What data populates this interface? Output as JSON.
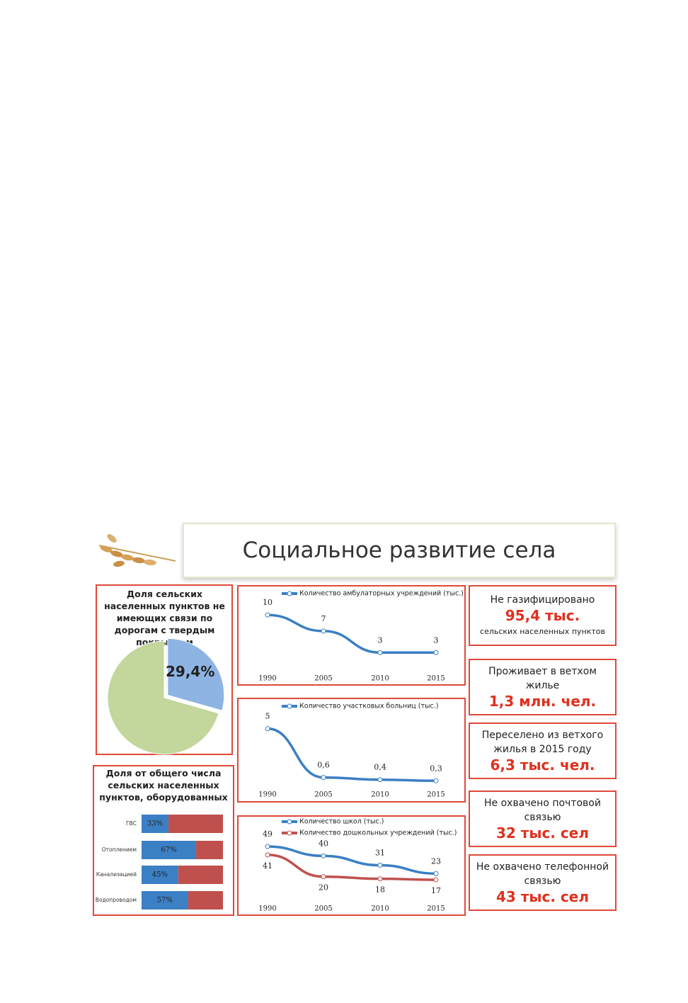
{
  "title": "Социальное развитие села",
  "chart_data": [
    {
      "type": "pie",
      "title": "Доля сельских населенных пунктов не имеющих связи по дорогам с твердым покрытием",
      "values": [
        29.4,
        70.6
      ],
      "value_labels": [
        "29,4%",
        null
      ],
      "colors": [
        "#8eb4e3",
        "#c3d69b"
      ]
    },
    {
      "type": "stacked-barh",
      "title": "Доля от общего числа сельских населенных пунктов, оборудованных",
      "categories": [
        "ГВС",
        "Отоплением",
        "Канализацией",
        "Водопроводом"
      ],
      "xlim": [
        0,
        100
      ],
      "series": [
        {
          "color": "#3b7fc4",
          "values": [
            33,
            67,
            45,
            57
          ],
          "value_labels": [
            "33%",
            "67%",
            "45%",
            "57%"
          ]
        },
        {
          "color": "#c0504d",
          "values": [
            67,
            33,
            55,
            43
          ]
        }
      ]
    },
    {
      "type": "line",
      "categories": [
        "1990",
        "2005",
        "2010",
        "2015"
      ],
      "ylim": [
        0,
        12
      ],
      "series": [
        {
          "name": "Количество амбулаторных учреждений (тыс.)",
          "color": "#3b7fc4",
          "values": [
            10,
            7,
            3,
            3
          ]
        }
      ]
    },
    {
      "type": "line",
      "categories": [
        "1990",
        "2005",
        "2010",
        "2015"
      ],
      "ylim": [
        0,
        6
      ],
      "series": [
        {
          "name": "Количество участковых больниц (тыс.)",
          "color": "#3b7fc4",
          "values": [
            5,
            0.6,
            0.4,
            0.3
          ],
          "value_labels": [
            "5",
            "0,6",
            "0,4",
            "0,3"
          ]
        }
      ]
    },
    {
      "type": "line",
      "categories": [
        "1990",
        "2005",
        "2010",
        "2015"
      ],
      "ylim": [
        0,
        60
      ],
      "series": [
        {
          "name": "Количество школ (тыс.)",
          "color": "#3b7fc4",
          "values": [
            49,
            40,
            31,
            23
          ]
        },
        {
          "name": "Количество дошкольных учреждений (тыс.)",
          "color": "#c0504d",
          "values": [
            41,
            20,
            18,
            17
          ]
        }
      ]
    }
  ],
  "stats": [
    {
      "text": "Не газифицировано",
      "highlight": "95,4 тыс.",
      "note": "сельских населенных пунктов"
    },
    {
      "text": "Проживает в ветхом жилье",
      "highlight": "1,3 млн. чел."
    },
    {
      "text": "Переселено из ветхого жилья в 2015 году",
      "highlight": "6,3 тыс. чел."
    },
    {
      "text": "Не охвачено почтовой связью",
      "highlight": "32 тыс. сел"
    },
    {
      "text": "Не охвачено телефонной связью",
      "highlight": "43 тыс. сел"
    }
  ]
}
